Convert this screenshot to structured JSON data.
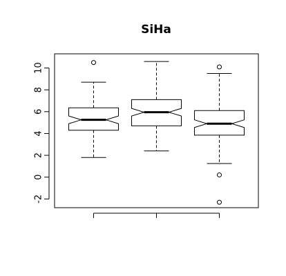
{
  "chart_data": {
    "type": "box",
    "title": "SiHa",
    "xlabel": "",
    "ylabel": "",
    "ylim": [
      -2.8,
      11.3
    ],
    "yticks": [
      -2,
      0,
      2,
      4,
      6,
      8,
      10
    ],
    "ytick_labels": [
      "-2",
      "0",
      "2",
      "4",
      "6",
      "8",
      "10"
    ],
    "notched": true,
    "boxes": [
      {
        "whisker_low": 1.8,
        "q1": 4.3,
        "median": 5.25,
        "q3": 6.35,
        "whisker_high": 8.7,
        "notch_low": 4.9,
        "notch_high": 5.6,
        "outliers": [
          10.5
        ]
      },
      {
        "whisker_low": 2.4,
        "q1": 4.7,
        "median": 5.95,
        "q3": 7.1,
        "whisker_high": 10.6,
        "notch_low": 5.6,
        "notch_high": 6.3,
        "outliers": []
      },
      {
        "whisker_low": 1.25,
        "q1": 3.85,
        "median": 4.9,
        "q3": 6.1,
        "whisker_high": 9.5,
        "notch_low": 4.55,
        "notch_high": 5.25,
        "outliers": [
          10.1,
          0.2,
          -2.3
        ]
      }
    ]
  }
}
